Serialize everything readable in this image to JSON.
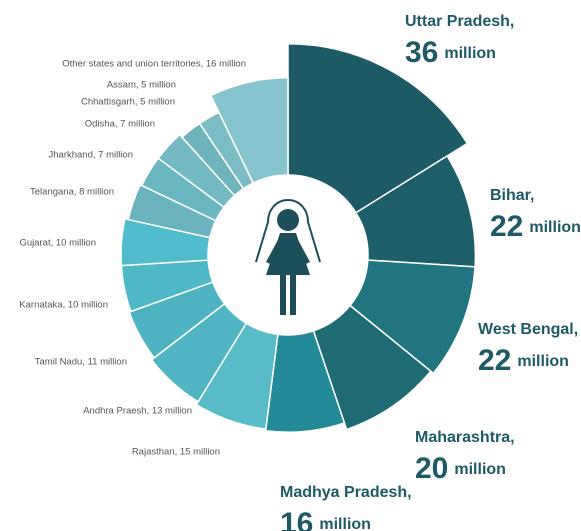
{
  "chart_data": {
    "type": "polar-donut",
    "unit": "million",
    "featured_names": [
      "Uttar Pradesh,",
      "Bihar,",
      "West Bengal,",
      "Maharashtra,",
      "Madhya Pradesh,"
    ],
    "labels": [
      null,
      null,
      null,
      null,
      null,
      "Rajasthan, 15 million",
      "Andhra Praesh, 13 million",
      "Tamil Nadu, 11 million",
      "Karnataka, 10 million",
      "Gujarat, 10 million",
      "Telangana, 8 million",
      "Jharkhand, 7 million",
      "Odisha, 7 million",
      "Chhattisgarh, 5 million",
      "Assam, 5 million",
      "Other states and union territories, 16 million"
    ],
    "values": [
      36,
      22,
      22,
      20,
      16,
      15,
      13,
      11,
      10,
      10,
      8,
      7,
      7,
      5,
      5,
      16
    ],
    "colors": [
      "#1d5a66",
      "#1e5e6a",
      "#217580",
      "#1e6a75",
      "#238b97",
      "#58bcc8",
      "#50b5c2",
      "#4eb3c0",
      "#4db8c6",
      "#4fbdcb",
      "#6ab3bf",
      "#6ab6c1",
      "#74b9c3",
      "#6fb3bd",
      "#7cbcc5",
      "#86c3cc"
    ]
  }
}
